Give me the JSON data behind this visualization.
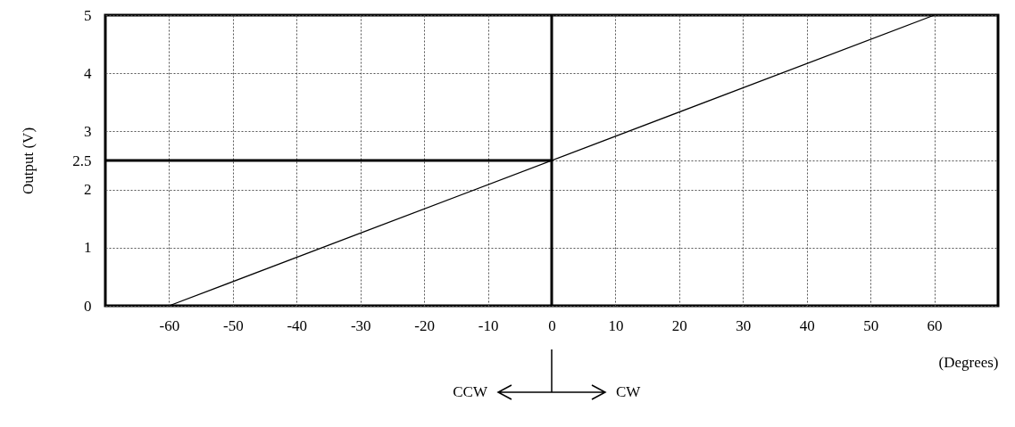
{
  "chart_data": {
    "type": "line",
    "ylabel": "Output (V)",
    "xlabel": "(Degrees)",
    "x": [
      -60,
      60
    ],
    "series": [
      {
        "color": "#000000",
        "values": [
          0,
          5
        ]
      }
    ],
    "xlim": [
      -70,
      70
    ],
    "xticks": [
      -60,
      -50,
      -40,
      -30,
      -20,
      -10,
      0,
      10,
      20,
      30,
      40,
      50,
      60
    ],
    "ylim": [
      0,
      5
    ],
    "yticks": [
      0,
      1,
      2,
      2.5,
      3,
      4,
      5
    ],
    "grid": true,
    "marker": "none",
    "line_style": "solid",
    "ref_lines": [
      {
        "axis": "x",
        "value": 0,
        "color": "#000000"
      },
      {
        "axis": "y",
        "value": 2.5,
        "color": "#000000"
      }
    ],
    "annotations": [
      "CCW",
      "CW"
    ]
  }
}
